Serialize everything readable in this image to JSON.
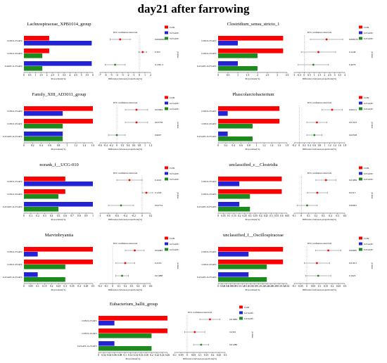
{
  "main_title": "day21 after farrowing",
  "legend_labels": [
    "CON",
    "0.2%ATC",
    "0.4%ATC"
  ],
  "colors": {
    "CON": "#ff0000",
    "0.2%ATC": "#2323d6",
    "0.4%ATC": "#1d8a1d",
    "zero_line": "#888888"
  },
  "text": {
    "ci": "95% confidence intervals",
    "xlabel_left": "Proportions(%)",
    "xlabel_right": "Difference between proportions(%)",
    "pvalue": "pvalue"
  },
  "chart_data": [
    {
      "type": "bar",
      "title": "Lachnospiraceae_XPB1014_group",
      "categories": [
        "CON-0.2%ATC",
        "CON-0.4%ATC",
        "0.4ATC-0.2%ATC"
      ],
      "series": [
        {
          "name": "CON",
          "values": [
            2.2,
            2.2,
            null
          ]
        },
        {
          "name": "0.2%ATC",
          "values": [
            5.9,
            null,
            5.9
          ]
        },
        {
          "name": "0.4%ATC",
          "values": [
            null,
            1.6,
            1.6
          ]
        }
      ],
      "xlim": [
        0,
        6
      ],
      "xticks": [
        "0",
        "0.5",
        "1",
        "1.5",
        "2",
        "2.5",
        "3",
        "3.5",
        "4",
        "4.5",
        "5",
        "5.5",
        "6"
      ],
      "diff": {
        "values": [
          -3.4,
          0.6,
          -4.3
        ],
        "ci_low": [
          -5.2,
          -0.1,
          -6.1
        ],
        "ci_high": [
          -1.6,
          1.3,
          -2.5
        ],
        "colors": [
          "CON",
          "CON",
          "0.4%ATC"
        ]
      },
      "diff_xlim": [
        -7,
        2
      ],
      "diff_xticks": [
        "-7",
        "-6",
        "-5",
        "-4",
        "-3",
        "-2",
        "-1",
        "0",
        "1",
        "2"
      ],
      "pvalues": [
        "0.0002993",
        "0.303",
        "9.1391-5"
      ]
    },
    {
      "type": "bar",
      "title": "Clostridium_sensu_stricto_1",
      "categories": [
        "CON-0.2%ATC",
        "CON-0.4%ATC",
        "0.4%ATC-0.2%ATC"
      ],
      "series": [
        {
          "name": "CON",
          "values": [
            3.3,
            3.3,
            null
          ]
        },
        {
          "name": "0.2%ATC",
          "values": [
            1.0,
            null,
            1.0
          ]
        },
        {
          "name": "0.4%ATC",
          "values": [
            null,
            2.0,
            2.0
          ]
        }
      ],
      "xlim": [
        0,
        3.5
      ],
      "xticks": [
        "0",
        "0.5",
        "1",
        "1.5",
        "2",
        "2.5",
        "3",
        "3.5"
      ],
      "diff": {
        "values": [
          2.2,
          1.4,
          0.9
        ],
        "ci_low": [
          0.6,
          -0.3,
          -0.6
        ],
        "ci_high": [
          3.8,
          3.1,
          2.4
        ],
        "colors": [
          "CON",
          "CON",
          "0.4%ATC"
        ]
      },
      "diff_xlim": [
        -1,
        4
      ],
      "diff_xticks": [
        "-1",
        "-0.5",
        "0",
        "0.5",
        "1",
        "1.5",
        "2",
        "2.5",
        "3",
        "3.5",
        "4"
      ],
      "pvalues": [
        "0.006133",
        "0.1246",
        "0.4076"
      ]
    },
    {
      "type": "bar",
      "title": "Family_XIII_AD3011_group",
      "categories": [
        "CON-0.2%ATC",
        "CON-0.4%ATC",
        "0.4%ATC-0.2%ATC"
      ],
      "series": [
        {
          "name": "CON",
          "values": [
            1.6,
            1.6,
            null
          ]
        },
        {
          "name": "0.2%ATC",
          "values": [
            0.9,
            null,
            0.9
          ]
        },
        {
          "name": "0.4%ATC",
          "values": [
            null,
            0.9,
            0.9
          ]
        }
      ],
      "xlim": [
        0,
        1.6
      ],
      "xticks": [
        "0",
        "0.2",
        "0.4",
        "0.6",
        "0.8",
        "1",
        "1.2",
        "1.4",
        "1.6"
      ],
      "diff": {
        "values": [
          0.7,
          0.7,
          0.0
        ],
        "ci_low": [
          0.3,
          0.3,
          -0.3
        ],
        "ci_high": [
          1.1,
          1.1,
          0.3
        ],
        "colors": [
          "CON",
          "CON",
          "0.4%ATC"
        ]
      },
      "diff_xlim": [
        -0.6,
        1.2
      ],
      "diff_xticks": [
        "-0.6",
        "-0.4",
        "-0.2",
        "0",
        "0.2",
        "0.4",
        "0.6",
        "0.8",
        "1",
        "1.2"
      ],
      "pvalues": [
        "0.03064",
        "0.03758",
        "0.9007"
      ]
    },
    {
      "type": "bar",
      "title": "Phascolarctobacterium",
      "categories": [
        "CON-0.2%ATC",
        "CON-0.4%ATC",
        "0.4%ATC-0.2%ATC"
      ],
      "series": [
        {
          "name": "CON",
          "values": [
            1.6,
            1.6,
            null
          ]
        },
        {
          "name": "0.2%ATC",
          "values": [
            0.25,
            null,
            0.25
          ]
        },
        {
          "name": "0.4%ATC",
          "values": [
            null,
            0.9,
            0.9
          ]
        }
      ],
      "xlim": [
        0,
        1.8
      ],
      "xticks": [
        "0",
        "0.2",
        "0.4",
        "0.6",
        "0.8",
        "1",
        "1.2",
        "1.4",
        "1.6",
        "1.8"
      ],
      "diff": {
        "values": [
          1.3,
          0.7,
          0.6
        ],
        "ci_low": [
          0.9,
          0.3,
          0.3
        ],
        "ci_high": [
          1.7,
          1.1,
          0.9
        ],
        "colors": [
          "CON",
          "CON",
          "0.4%ATC"
        ]
      },
      "diff_xlim": [
        -0.2,
        1.8
      ],
      "diff_xticks": [
        "-0.2",
        "0",
        "0.2",
        "0.4",
        "0.6",
        "0.8",
        "1",
        "1.2",
        "1.4",
        "1.6",
        "1.8"
      ],
      "pvalues": [
        "0.00121",
        "0.01533",
        "0.02538"
      ]
    },
    {
      "type": "bar",
      "title": "norank_f__UCG-010",
      "categories": [
        "CON-0.2%ATC",
        "CON-0.4%ATC",
        "0.4%ATC-0.2%ATC"
      ],
      "series": [
        {
          "name": "CON",
          "values": [
            0.6,
            0.6,
            null
          ]
        },
        {
          "name": "0.2%ATC",
          "values": [
            1.0,
            null,
            1.0
          ]
        },
        {
          "name": "0.4%ATC",
          "values": [
            null,
            0.5,
            0.5
          ]
        }
      ],
      "xlim": [
        0,
        1
      ],
      "xticks": [
        "0",
        "0.1",
        "0.2",
        "0.3",
        "0.4",
        "0.5",
        "0.6",
        "0.7",
        "0.8",
        "0.9",
        "1"
      ],
      "diff": {
        "values": [
          -0.3,
          0.1,
          -0.5
        ],
        "ci_low": [
          -0.6,
          0.0,
          -0.8
        ],
        "ci_high": [
          0.0,
          0.25,
          -0.2
        ],
        "colors": [
          "CON",
          "CON",
          "0.4%ATC"
        ]
      },
      "diff_xlim": [
        -1,
        0.2
      ],
      "diff_xticks": [
        "-1",
        "-0.8",
        "-0.6",
        "-0.4",
        "-0.2",
        "0",
        "0.2"
      ],
      "pvalues": [
        "0.1022",
        "0.1229",
        "0.02754"
      ]
    },
    {
      "type": "bar",
      "title": "unclassified_c__Clostridia",
      "categories": [
        "CON-0.2%ATC",
        "CON-0.4%ATC",
        "0.4%ATC-0.2%ATC"
      ],
      "series": [
        {
          "name": "CON",
          "values": [
            0.6,
            0.6,
            null
          ]
        },
        {
          "name": "0.2%ATC",
          "values": [
            0.2,
            null,
            0.2
          ]
        },
        {
          "name": "0.4%ATC",
          "values": [
            null,
            0.3,
            0.3
          ]
        }
      ],
      "xlim": [
        0,
        0.65
      ],
      "xticks": [
        "0",
        "0.05",
        "0.1",
        "0.15",
        "0.2",
        "0.25",
        "0.3",
        "0.35",
        "0.4",
        "0.45",
        "0.5",
        "0.55",
        "0.6",
        "0.65"
      ],
      "diff": {
        "values": [
          0.34,
          0.22,
          0.08
        ],
        "ci_low": [
          0.2,
          0.08,
          -0.06
        ],
        "ci_high": [
          0.48,
          0.36,
          0.22
        ],
        "colors": [
          "CON",
          "CON",
          "0.4%ATC"
        ]
      },
      "diff_xlim": [
        -0.1,
        0.6
      ],
      "diff_xticks": [
        "-0.1",
        "0",
        "0.1",
        "0.2",
        "0.3",
        "0.4",
        "0.5",
        "0.6"
      ],
      "pvalues": [
        "0.01084",
        "0.0313",
        "0.00061"
      ]
    },
    {
      "type": "bar",
      "title": "Marvinbryantia",
      "categories": [
        "CON-0.2%ATC",
        "CON-0.4%ATC",
        "0.4%ATC-0.2%ATC"
      ],
      "series": [
        {
          "name": "CON",
          "values": [
            0.5,
            0.5,
            null
          ]
        },
        {
          "name": "0.2%ATC",
          "values": [
            0.1,
            null,
            0.1
          ]
        },
        {
          "name": "0.4%ATC",
          "values": [
            null,
            0.3,
            0.3
          ]
        }
      ],
      "xlim": [
        0,
        0.5
      ],
      "xticks": [
        "0",
        "0.05",
        "0.1",
        "0.15",
        "0.2",
        "0.25",
        "0.3",
        "0.35",
        "0.4",
        "0.45",
        "0.5"
      ],
      "diff": {
        "values": [
          0.35,
          0.2,
          0.15
        ],
        "ci_low": [
          0.2,
          0.05,
          0.05
        ],
        "ci_high": [
          0.5,
          0.35,
          0.25
        ],
        "colors": [
          "CON",
          "CON",
          "0.4%ATC"
        ]
      },
      "diff_xlim": [
        -0.2,
        0.6
      ],
      "diff_xticks": [
        "-0.2",
        "-0.1",
        "0",
        "0.1",
        "0.2",
        "0.3",
        "0.4",
        "0.5",
        "0.6"
      ],
      "pvalues": [
        "0.04483",
        "0.2555",
        "0.01088"
      ]
    },
    {
      "type": "bar",
      "title": "unclassified_f__Oscillospiraceae",
      "categories": [
        "CON-0.2%ATC",
        "CON-0.4%ATC",
        "0.4%ATC-0.2%ATC"
      ],
      "series": [
        {
          "name": "CON",
          "values": [
            0.32,
            0.32,
            null
          ]
        },
        {
          "name": "0.2%ATC",
          "values": [
            0.15,
            null,
            0.15
          ]
        },
        {
          "name": "0.4%ATC",
          "values": [
            null,
            0.24,
            0.24
          ]
        }
      ],
      "xlim": [
        0,
        0.34
      ],
      "xticks": [
        "0",
        "0.02",
        "0.04",
        "0.06",
        "0.08",
        "0.1",
        "0.12",
        "0.14",
        "0.16",
        "0.18",
        "0.2",
        "0.22",
        "0.24",
        "0.26",
        "0.28",
        "0.3",
        "0.32",
        "0.34"
      ],
      "diff": {
        "values": [
          0.17,
          0.08,
          0.09
        ],
        "ci_low": [
          0.07,
          -0.02,
          -0.01
        ],
        "ci_high": [
          0.27,
          0.18,
          0.19
        ],
        "colors": [
          "CON",
          "CON",
          "0.4%ATC"
        ]
      },
      "diff_xlim": [
        -0.1,
        0.3
      ],
      "diff_xticks": [
        "-0.1",
        "-0.05",
        "0",
        "0.05",
        "0.1",
        "0.15",
        "0.2",
        "0.25",
        "0.3"
      ],
      "pvalues": [
        "0.00665",
        "0.01971",
        "0.1923"
      ]
    },
    {
      "type": "bar",
      "title": "Eubacterium_hallii_group",
      "categories": [
        "CON-0.2%ATC",
        "CON-0.4%ATC",
        "0.4%ATC-0.2%ATC"
      ],
      "series": [
        {
          "name": "CON",
          "values": [
            0.26,
            0.26,
            null
          ]
        },
        {
          "name": "0.2%ATC",
          "values": [
            0.06,
            null,
            0.06
          ]
        },
        {
          "name": "0.4%ATC",
          "values": [
            null,
            0.2,
            0.2
          ]
        }
      ],
      "xlim": [
        0,
        0.26
      ],
      "xticks": [
        "0",
        "0.02",
        "0.04",
        "0.06",
        "0.08",
        "0.1",
        "0.12",
        "0.14",
        "0.16",
        "0.18",
        "0.2",
        "0.22",
        "0.24",
        "0.26"
      ],
      "diff": {
        "values": [
          0.18,
          0.06,
          0.11
        ],
        "ci_low": [
          0.1,
          -0.02,
          0.05
        ],
        "ci_high": [
          0.26,
          0.14,
          0.17
        ],
        "colors": [
          "CON",
          "CON",
          "0.4%ATC"
        ]
      },
      "diff_xlim": [
        -0.1,
        0.3
      ],
      "diff_xticks": [
        "-0.1",
        "-0.05",
        "0",
        "0.05",
        "0.1",
        "0.15",
        "0.2",
        "0.25",
        "0.3"
      ],
      "pvalues": [
        "0.01684",
        "0.2391",
        "0.01286"
      ]
    }
  ]
}
